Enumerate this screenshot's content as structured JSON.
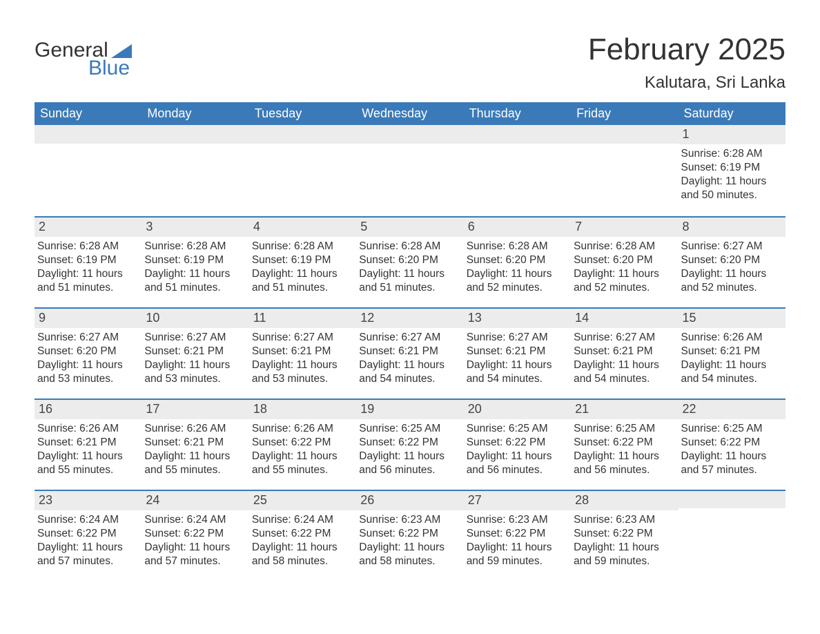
{
  "logo": {
    "text1": "General",
    "text2": "Blue",
    "accent_color": "#3b7ab8"
  },
  "title": "February 2025",
  "location": "Kalutara, Sri Lanka",
  "colors": {
    "header_bg": "#3b7ab8",
    "header_text": "#ffffff",
    "daynum_bg": "#ececec",
    "rule": "#3b7ab8",
    "body_text": "#333333"
  },
  "day_headers": [
    "Sunday",
    "Monday",
    "Tuesday",
    "Wednesday",
    "Thursday",
    "Friday",
    "Saturday"
  ],
  "labels": {
    "sunrise": "Sunrise: ",
    "sunset": "Sunset: ",
    "daylight": "Daylight: "
  },
  "weeks": [
    [
      null,
      null,
      null,
      null,
      null,
      null,
      {
        "n": "1",
        "sunrise": "6:28 AM",
        "sunset": "6:19 PM",
        "daylight": "11 hours and 50 minutes."
      }
    ],
    [
      {
        "n": "2",
        "sunrise": "6:28 AM",
        "sunset": "6:19 PM",
        "daylight": "11 hours and 51 minutes."
      },
      {
        "n": "3",
        "sunrise": "6:28 AM",
        "sunset": "6:19 PM",
        "daylight": "11 hours and 51 minutes."
      },
      {
        "n": "4",
        "sunrise": "6:28 AM",
        "sunset": "6:19 PM",
        "daylight": "11 hours and 51 minutes."
      },
      {
        "n": "5",
        "sunrise": "6:28 AM",
        "sunset": "6:20 PM",
        "daylight": "11 hours and 51 minutes."
      },
      {
        "n": "6",
        "sunrise": "6:28 AM",
        "sunset": "6:20 PM",
        "daylight": "11 hours and 52 minutes."
      },
      {
        "n": "7",
        "sunrise": "6:28 AM",
        "sunset": "6:20 PM",
        "daylight": "11 hours and 52 minutes."
      },
      {
        "n": "8",
        "sunrise": "6:27 AM",
        "sunset": "6:20 PM",
        "daylight": "11 hours and 52 minutes."
      }
    ],
    [
      {
        "n": "9",
        "sunrise": "6:27 AM",
        "sunset": "6:20 PM",
        "daylight": "11 hours and 53 minutes."
      },
      {
        "n": "10",
        "sunrise": "6:27 AM",
        "sunset": "6:21 PM",
        "daylight": "11 hours and 53 minutes."
      },
      {
        "n": "11",
        "sunrise": "6:27 AM",
        "sunset": "6:21 PM",
        "daylight": "11 hours and 53 minutes."
      },
      {
        "n": "12",
        "sunrise": "6:27 AM",
        "sunset": "6:21 PM",
        "daylight": "11 hours and 54 minutes."
      },
      {
        "n": "13",
        "sunrise": "6:27 AM",
        "sunset": "6:21 PM",
        "daylight": "11 hours and 54 minutes."
      },
      {
        "n": "14",
        "sunrise": "6:27 AM",
        "sunset": "6:21 PM",
        "daylight": "11 hours and 54 minutes."
      },
      {
        "n": "15",
        "sunrise": "6:26 AM",
        "sunset": "6:21 PM",
        "daylight": "11 hours and 54 minutes."
      }
    ],
    [
      {
        "n": "16",
        "sunrise": "6:26 AM",
        "sunset": "6:21 PM",
        "daylight": "11 hours and 55 minutes."
      },
      {
        "n": "17",
        "sunrise": "6:26 AM",
        "sunset": "6:21 PM",
        "daylight": "11 hours and 55 minutes."
      },
      {
        "n": "18",
        "sunrise": "6:26 AM",
        "sunset": "6:22 PM",
        "daylight": "11 hours and 55 minutes."
      },
      {
        "n": "19",
        "sunrise": "6:25 AM",
        "sunset": "6:22 PM",
        "daylight": "11 hours and 56 minutes."
      },
      {
        "n": "20",
        "sunrise": "6:25 AM",
        "sunset": "6:22 PM",
        "daylight": "11 hours and 56 minutes."
      },
      {
        "n": "21",
        "sunrise": "6:25 AM",
        "sunset": "6:22 PM",
        "daylight": "11 hours and 56 minutes."
      },
      {
        "n": "22",
        "sunrise": "6:25 AM",
        "sunset": "6:22 PM",
        "daylight": "11 hours and 57 minutes."
      }
    ],
    [
      {
        "n": "23",
        "sunrise": "6:24 AM",
        "sunset": "6:22 PM",
        "daylight": "11 hours and 57 minutes."
      },
      {
        "n": "24",
        "sunrise": "6:24 AM",
        "sunset": "6:22 PM",
        "daylight": "11 hours and 57 minutes."
      },
      {
        "n": "25",
        "sunrise": "6:24 AM",
        "sunset": "6:22 PM",
        "daylight": "11 hours and 58 minutes."
      },
      {
        "n": "26",
        "sunrise": "6:23 AM",
        "sunset": "6:22 PM",
        "daylight": "11 hours and 58 minutes."
      },
      {
        "n": "27",
        "sunrise": "6:23 AM",
        "sunset": "6:22 PM",
        "daylight": "11 hours and 59 minutes."
      },
      {
        "n": "28",
        "sunrise": "6:23 AM",
        "sunset": "6:22 PM",
        "daylight": "11 hours and 59 minutes."
      },
      null
    ]
  ]
}
